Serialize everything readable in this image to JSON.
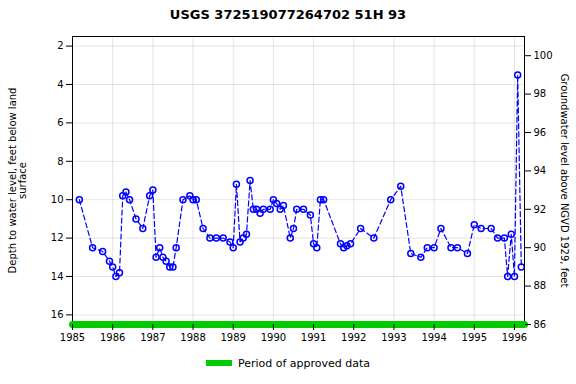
{
  "chart_data": {
    "type": "line",
    "title": "USGS 372519077264702 51H 93",
    "ylabel": "Depth to water level, feet below land\nsurface",
    "y2label": "Groundwater level above NGVD 1929, feet",
    "xlim": [
      1985.0,
      1996.25
    ],
    "xticks": [
      1985,
      1986,
      1987,
      1988,
      1989,
      1990,
      1991,
      1992,
      1993,
      1994,
      1995,
      1996
    ],
    "ylim": [
      16.5,
      1.5
    ],
    "yticks": [
      2,
      4,
      6,
      8,
      10,
      12,
      14,
      16
    ],
    "y2lim": [
      86,
      101
    ],
    "y2ticks": [
      86,
      88,
      90,
      92,
      94,
      96,
      98,
      100
    ],
    "grid": true,
    "legend": "bottom",
    "series": [
      {
        "type": "line",
        "color": "blue",
        "marker": "circle",
        "line_style": "dashed",
        "x": [
          1985.17,
          1985.5,
          1985.75,
          1985.92,
          1986.0,
          1986.08,
          1986.17,
          1986.25,
          1986.33,
          1986.42,
          1986.58,
          1986.75,
          1986.92,
          1987.0,
          1987.08,
          1987.17,
          1987.25,
          1987.33,
          1987.42,
          1987.5,
          1987.58,
          1987.75,
          1987.92,
          1988.0,
          1988.08,
          1988.25,
          1988.42,
          1988.58,
          1988.75,
          1988.92,
          1989.0,
          1989.08,
          1989.17,
          1989.25,
          1989.33,
          1989.42,
          1989.5,
          1989.58,
          1989.67,
          1989.75,
          1989.92,
          1990.0,
          1990.08,
          1990.17,
          1990.25,
          1990.42,
          1990.5,
          1990.58,
          1990.75,
          1990.92,
          1991.0,
          1991.08,
          1991.17,
          1991.25,
          1991.67,
          1991.75,
          1991.83,
          1991.92,
          1992.17,
          1992.5,
          1992.92,
          1993.17,
          1993.42,
          1993.67,
          1993.83,
          1994.0,
          1994.17,
          1994.42,
          1994.58,
          1994.83,
          1995.0,
          1995.17,
          1995.42,
          1995.58,
          1995.75,
          1995.83,
          1995.92,
          1996.0,
          1996.08,
          1996.17
        ],
        "values": [
          10.0,
          12.5,
          12.7,
          13.2,
          13.5,
          14.0,
          13.8,
          9.8,
          9.6,
          10.0,
          11.0,
          11.5,
          9.8,
          9.5,
          13.0,
          12.5,
          13.0,
          13.2,
          13.5,
          13.5,
          12.5,
          10.0,
          9.8,
          10.0,
          10.0,
          11.5,
          12.0,
          12.0,
          12.0,
          12.2,
          12.5,
          9.2,
          12.2,
          12.0,
          11.8,
          9.0,
          10.5,
          10.5,
          10.7,
          10.5,
          10.5,
          10.0,
          10.2,
          10.5,
          10.3,
          12.0,
          11.5,
          10.5,
          10.5,
          10.8,
          12.3,
          12.5,
          10.0,
          10.0,
          12.3,
          12.5,
          12.4,
          12.3,
          11.5,
          12.0,
          10.0,
          9.3,
          12.8,
          13.0,
          12.5,
          12.5,
          11.5,
          12.5,
          12.5,
          12.8,
          11.3,
          11.5,
          11.5,
          12.0,
          12.0,
          14.0,
          11.8,
          14.0,
          3.5,
          13.5
        ]
      },
      {
        "type": "line",
        "name": "Period of approved data",
        "color": "#00cc00",
        "line_style": "solid",
        "x": [
          1985.0,
          1996.25
        ],
        "values": [
          16.5,
          16.5
        ]
      }
    ]
  }
}
